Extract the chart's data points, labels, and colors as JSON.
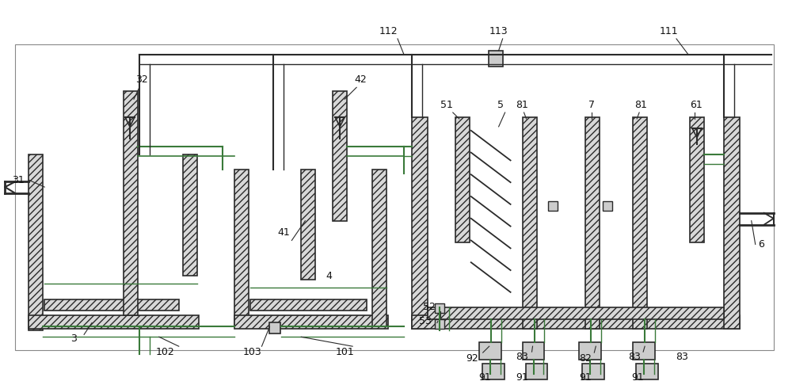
{
  "bg_color": "#ffffff",
  "lc": "#2a2a2a",
  "gc": "#3a7a3a",
  "fig_width": 10.0,
  "fig_height": 4.86,
  "dpi": 100
}
